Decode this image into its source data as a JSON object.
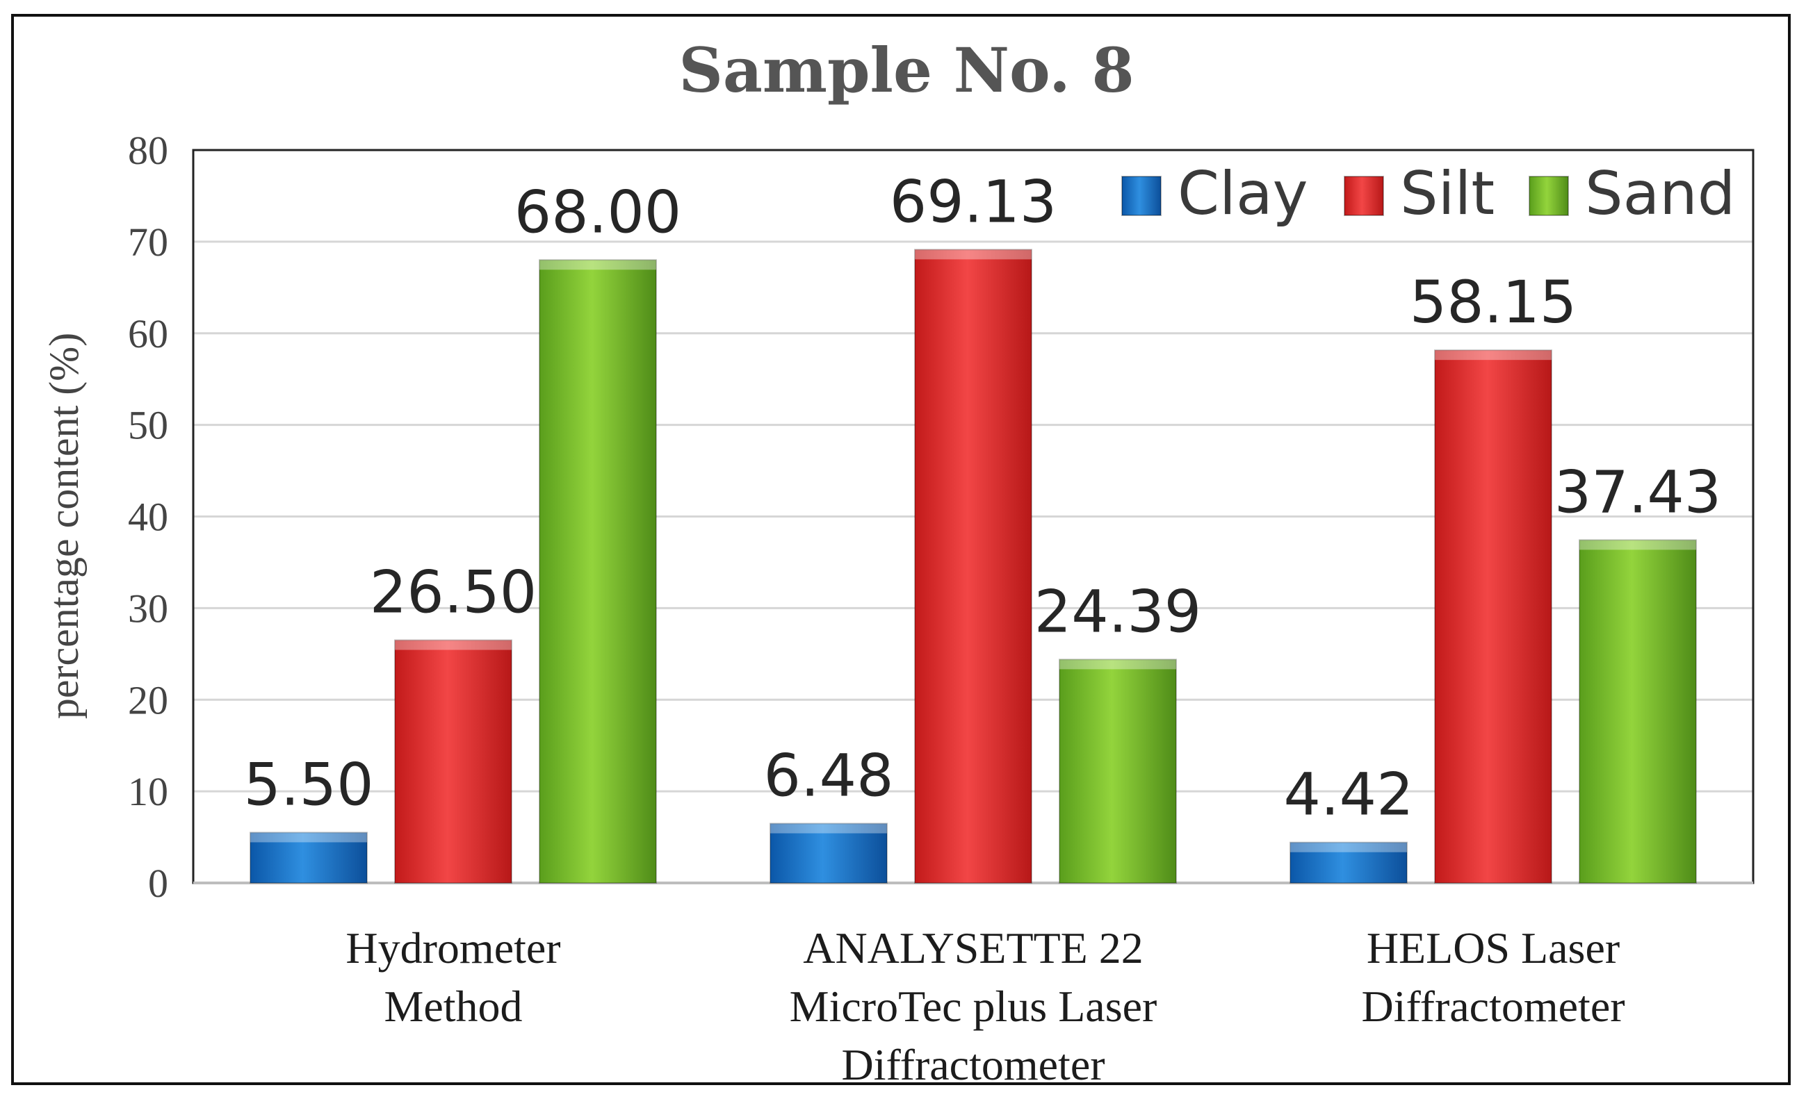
{
  "chart_data": {
    "type": "bar",
    "title": "Sample No. 8",
    "xlabel": "",
    "ylabel": "percentage content (%)",
    "ylim": [
      0,
      80
    ],
    "yticks": [
      0,
      10,
      20,
      30,
      40,
      50,
      60,
      70,
      80
    ],
    "grid": true,
    "legend_position": "top-right",
    "categories": [
      [
        "Hydrometer",
        "Method"
      ],
      [
        "ANALYSETTE 22",
        "MicroTec plus Laser",
        "Diffractometer"
      ],
      [
        "HELOS Laser",
        "Diffractometer"
      ]
    ],
    "series": [
      {
        "name": "Clay",
        "color": "#1f78c8",
        "values": [
          5.5,
          6.48,
          4.42
        ],
        "labels": [
          "5.50",
          "6.48",
          "4.42"
        ]
      },
      {
        "name": "Silt",
        "color": "#e03030",
        "values": [
          26.5,
          69.13,
          58.15
        ],
        "labels": [
          "26.50",
          "69.13",
          "58.15"
        ]
      },
      {
        "name": "Sand",
        "color": "#7cc02e",
        "values": [
          68.0,
          24.39,
          37.43
        ],
        "labels": [
          "68.00",
          "24.39",
          "37.43"
        ]
      }
    ]
  }
}
